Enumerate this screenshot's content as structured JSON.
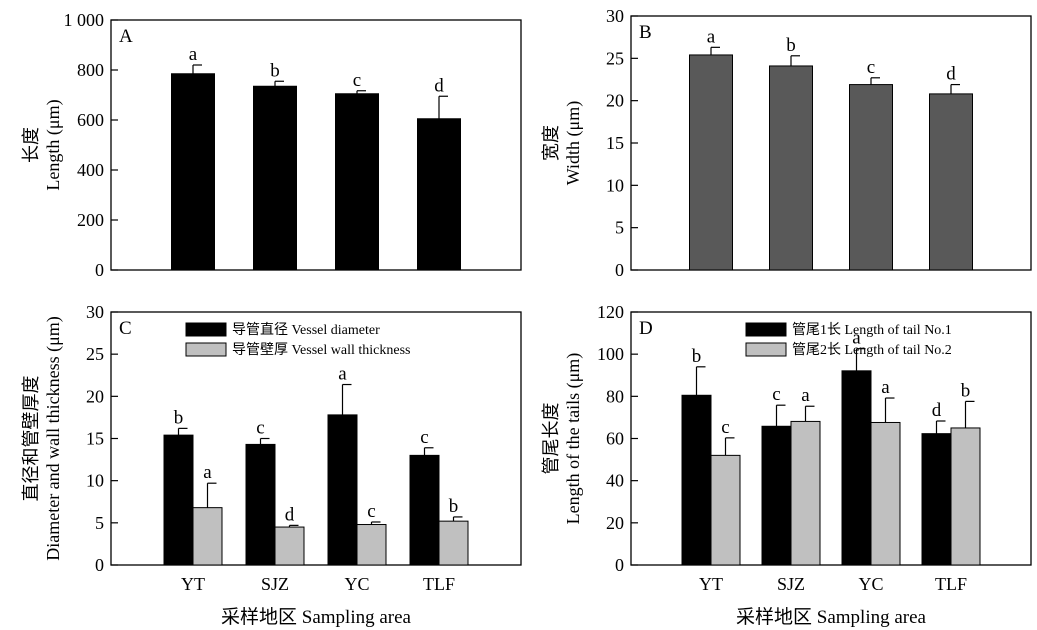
{
  "chart_data": [
    {
      "panel": "A",
      "type": "bar",
      "categories": [
        "YT",
        "SJZ",
        "YC",
        "TLF"
      ],
      "ylabel_cn": "长度",
      "ylabel_en": "Length (μm)",
      "ylim": [
        0,
        1000
      ],
      "yticks": [
        0,
        200,
        400,
        600,
        800,
        1000
      ],
      "ytick_labels": [
        "0",
        "200",
        "400",
        "600",
        "800",
        "1 000"
      ],
      "show_x_ticklabels": false,
      "series": [
        {
          "name": "",
          "color": "#000000",
          "values": [
            785,
            735,
            705,
            605
          ],
          "errors": [
            35,
            20,
            12,
            90
          ],
          "letters": [
            "a",
            "b",
            "c",
            "d"
          ]
        }
      ]
    },
    {
      "panel": "B",
      "type": "bar",
      "categories": [
        "YT",
        "SJZ",
        "YC",
        "TLF"
      ],
      "ylabel_cn": "宽度",
      "ylabel_en": "Width (μm)",
      "ylim": [
        0,
        30
      ],
      "yticks": [
        0,
        5,
        10,
        15,
        20,
        25,
        30
      ],
      "ytick_labels": [
        "0",
        "5",
        "10",
        "15",
        "20",
        "25",
        "30"
      ],
      "show_x_ticklabels": false,
      "series": [
        {
          "name": "",
          "color": "#595959",
          "values": [
            25.4,
            24.1,
            21.9,
            20.8
          ],
          "errors": [
            0.9,
            1.2,
            0.8,
            1.1
          ],
          "letters": [
            "a",
            "b",
            "c",
            "d"
          ]
        }
      ]
    },
    {
      "panel": "C",
      "type": "bar",
      "categories": [
        "YT",
        "SJZ",
        "YC",
        "TLF"
      ],
      "ylabel_cn": "直径和管壁厚度",
      "ylabel_en": "Diameter and wall thickness (μm)",
      "xlabel": "采样地区 Sampling area",
      "ylim": [
        0,
        30
      ],
      "yticks": [
        0,
        5,
        10,
        15,
        20,
        25,
        30
      ],
      "ytick_labels": [
        "0",
        "5",
        "10",
        "15",
        "20",
        "25",
        "30"
      ],
      "show_x_ticklabels": true,
      "series": [
        {
          "name": "导管直径 Vessel diameter",
          "color": "#000000",
          "values": [
            15.4,
            14.3,
            17.8,
            13.0
          ],
          "errors": [
            0.8,
            0.7,
            3.6,
            0.9
          ],
          "letters": [
            "b",
            "c",
            "a",
            "c"
          ]
        },
        {
          "name": "导管壁厚 Vessel wall thickness",
          "color": "#c0c0c0",
          "values": [
            6.8,
            4.5,
            4.8,
            5.2
          ],
          "errors": [
            2.9,
            0.2,
            0.3,
            0.5
          ],
          "letters": [
            "a",
            "d",
            "c",
            "b"
          ]
        }
      ]
    },
    {
      "panel": "D",
      "type": "bar",
      "categories": [
        "YT",
        "SJZ",
        "YC",
        "TLF"
      ],
      "ylabel_cn": "管尾长度",
      "ylabel_en": "Length of the tails (μm)",
      "xlabel": "采样地区 Sampling area",
      "ylim": [
        0,
        120
      ],
      "yticks": [
        0,
        20,
        40,
        60,
        80,
        100,
        120
      ],
      "ytick_labels": [
        "0",
        "20",
        "40",
        "60",
        "80",
        "100",
        "120"
      ],
      "show_x_ticklabels": true,
      "series": [
        {
          "name": "管尾1长 Length of tail No.1",
          "color": "#000000",
          "values": [
            80.5,
            65.8,
            92.1,
            62.3
          ],
          "errors": [
            13.5,
            10.0,
            10.5,
            6.0
          ],
          "letters": [
            "b",
            "c",
            "a",
            "d"
          ]
        },
        {
          "name": "管尾2长 Length of tail No.2",
          "color": "#c0c0c0",
          "values": [
            52.0,
            68.1,
            67.6,
            65.0
          ],
          "errors": [
            8.3,
            7.2,
            11.6,
            12.6
          ],
          "letters": [
            "c",
            "a",
            "a",
            "b"
          ]
        }
      ]
    }
  ]
}
